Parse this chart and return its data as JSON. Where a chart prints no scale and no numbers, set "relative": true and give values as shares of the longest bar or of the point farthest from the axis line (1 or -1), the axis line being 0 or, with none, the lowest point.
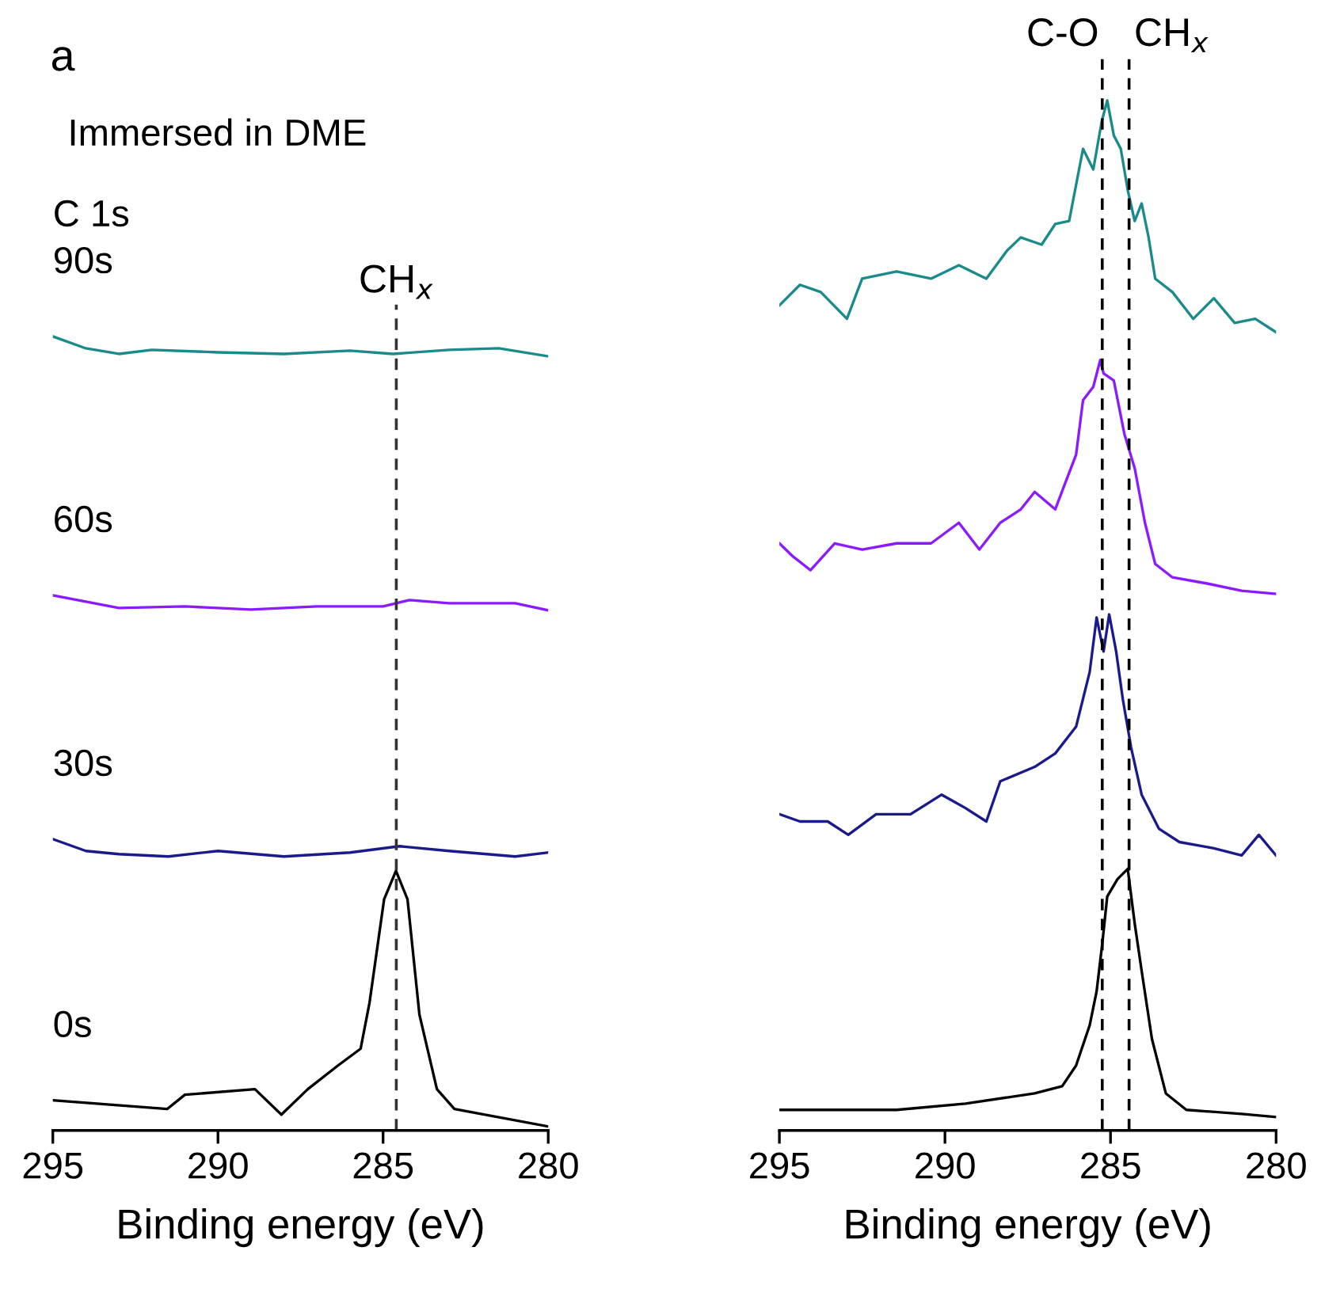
{
  "chart_data": [
    {
      "type": "line",
      "relative": true,
      "xlabel": "Binding energy (eV)",
      "xlim": [
        295,
        280
      ],
      "xticks": [
        295,
        290,
        285,
        280
      ],
      "tick_labels": "x",
      "grid": false,
      "legend": false,
      "annotations": [
        "a",
        "Immersed in DME",
        "C 1s"
      ],
      "ref_lines": [
        {
          "axis": "x",
          "value": 284.6,
          "label": "CH$_{x}$",
          "line_style": "dashed",
          "color": "#333333"
        }
      ],
      "series": [
        {
          "name": "90s",
          "color": "#1a8a8a",
          "x": [
            295,
            294,
            293,
            292,
            290,
            288,
            286,
            284.7,
            283,
            281.5,
            280
          ],
          "values": [
            1.0,
            0.985,
            0.978,
            0.983,
            0.98,
            0.978,
            0.982,
            0.978,
            0.983,
            0.985,
            0.975
          ]
        },
        {
          "name": "60s",
          "color": "#8c1aff",
          "x": [
            295,
            294,
            293,
            291,
            289,
            287,
            285,
            284.2,
            283,
            281,
            280
          ],
          "values": [
            0.674,
            0.666,
            0.658,
            0.66,
            0.656,
            0.66,
            0.66,
            0.668,
            0.664,
            0.664,
            0.655
          ]
        },
        {
          "name": "30s",
          "color": "#1a1a8c",
          "x": [
            295,
            294,
            293,
            291.5,
            290,
            288,
            286,
            284.5,
            283,
            281,
            280
          ],
          "values": [
            0.367,
            0.352,
            0.348,
            0.345,
            0.352,
            0.345,
            0.35,
            0.358,
            0.352,
            0.345,
            0.35
          ]
        },
        {
          "name": "0s",
          "color": "#000000",
          "x": [
            295,
            291.54,
            291.0,
            288.88,
            288.08,
            287.28,
            286.39,
            285.68,
            285.41,
            284.97,
            284.61,
            284.26,
            283.9,
            283.37,
            282.84,
            280
          ],
          "values": [
            0.038,
            0.027,
            0.045,
            0.052,
            0.02,
            0.052,
            0.081,
            0.103,
            0.161,
            0.291,
            0.327,
            0.291,
            0.146,
            0.052,
            0.027,
            0.005
          ]
        }
      ]
    },
    {
      "type": "line",
      "relative": true,
      "xlabel": "Binding energy (eV)",
      "xlim": [
        295,
        280
      ],
      "xticks": [
        295,
        290,
        285,
        280
      ],
      "tick_labels": "x",
      "grid": false,
      "legend": false,
      "ref_lines": [
        {
          "axis": "x",
          "value": 285.25,
          "label": "C-O",
          "line_style": "dashed",
          "color": "#000000"
        },
        {
          "axis": "x",
          "value": 284.44,
          "label": "CH$_{x}$",
          "line_style": "dashed",
          "color": "#000000"
        }
      ],
      "series": [
        {
          "color": "#1a8a8a",
          "x": [
            295.0,
            294.38,
            293.75,
            292.96,
            292.5,
            291.46,
            290.42,
            289.58,
            288.75,
            288.13,
            287.71,
            287.08,
            286.67,
            286.25,
            285.83,
            285.52,
            285.27,
            285.1,
            284.9,
            284.69,
            284.48,
            284.27,
            284.06,
            283.85,
            283.65,
            283.13,
            282.5,
            281.88,
            281.25,
            280.63,
            280.0
          ],
          "values": [
            0.801,
            0.821,
            0.814,
            0.788,
            0.827,
            0.834,
            0.827,
            0.84,
            0.827,
            0.854,
            0.867,
            0.86,
            0.88,
            0.883,
            0.953,
            0.933,
            0.979,
            1.0,
            0.966,
            0.953,
            0.913,
            0.883,
            0.9,
            0.867,
            0.827,
            0.814,
            0.788,
            0.808,
            0.784,
            0.788,
            0.775
          ]
        },
        {
          "color": "#8c1aff",
          "x": [
            295.0,
            294.58,
            294.06,
            293.33,
            292.5,
            291.46,
            290.42,
            289.58,
            288.96,
            288.33,
            287.71,
            287.29,
            286.67,
            286.35,
            286.04,
            285.83,
            285.52,
            285.31,
            285.21,
            284.9,
            284.58,
            284.27,
            283.96,
            283.65,
            283.13,
            282.08,
            281.04,
            280.0
          ],
          "values": [
            0.57,
            0.557,
            0.544,
            0.57,
            0.564,
            0.57,
            0.57,
            0.59,
            0.564,
            0.59,
            0.603,
            0.62,
            0.603,
            0.63,
            0.656,
            0.709,
            0.722,
            0.748,
            0.735,
            0.728,
            0.676,
            0.643,
            0.59,
            0.55,
            0.537,
            0.531,
            0.524,
            0.521
          ]
        },
        {
          "color": "#1a1a8c",
          "x": [
            295.0,
            294.38,
            293.54,
            292.92,
            292.08,
            291.04,
            290.1,
            289.38,
            288.75,
            288.33,
            287.29,
            286.67,
            286.04,
            285.63,
            285.42,
            285.21,
            285.04,
            284.83,
            284.63,
            284.38,
            284.06,
            283.54,
            282.92,
            281.88,
            281.04,
            280.52,
            280.0
          ],
          "values": [
            0.307,
            0.3,
            0.3,
            0.287,
            0.307,
            0.307,
            0.326,
            0.313,
            0.3,
            0.339,
            0.353,
            0.366,
            0.392,
            0.445,
            0.498,
            0.465,
            0.501,
            0.465,
            0.419,
            0.372,
            0.326,
            0.293,
            0.28,
            0.274,
            0.267,
            0.287,
            0.267
          ]
        },
        {
          "color": "#000000",
          "x": [
            295.0,
            293.54,
            291.46,
            289.38,
            287.29,
            286.46,
            286.04,
            285.63,
            285.42,
            285.25,
            285.1,
            284.79,
            284.48,
            284.27,
            284.06,
            283.75,
            283.33,
            282.71,
            281.04,
            280.0
          ],
          "values": [
            0.02,
            0.02,
            0.02,
            0.026,
            0.036,
            0.043,
            0.063,
            0.102,
            0.135,
            0.181,
            0.227,
            0.244,
            0.254,
            0.201,
            0.155,
            0.089,
            0.036,
            0.02,
            0.016,
            0.013
          ]
        }
      ]
    }
  ]
}
